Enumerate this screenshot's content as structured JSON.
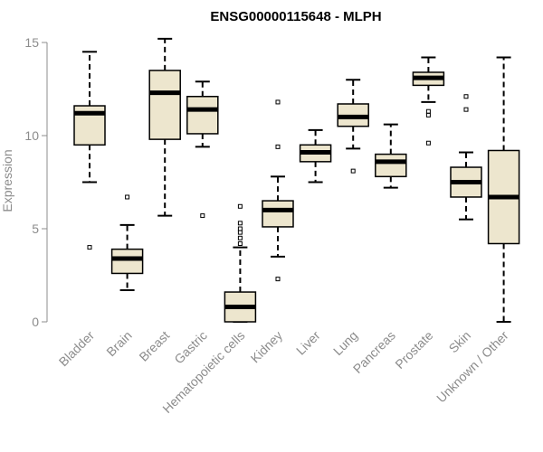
{
  "chart_data": {
    "type": "boxplot",
    "title": "ENSG00000115648 - MLPH",
    "ylabel": "Expression",
    "xlabel": "",
    "ylim": [
      0,
      15
    ],
    "yticks": [
      0,
      5,
      10,
      15
    ],
    "grid": false,
    "colors": {
      "box_fill": "#ede6ce",
      "box_stroke": "#000000",
      "axis": "#8c8c8c",
      "title": "#000000"
    },
    "categories": [
      "Bladder",
      "Brain",
      "Breast",
      "Gastric",
      "Hematopoietic cells",
      "Kidney",
      "Liver",
      "Lung",
      "Pancreas",
      "Prostate",
      "Skin",
      "Unknown / Other"
    ],
    "boxes": [
      {
        "label": "Bladder",
        "whisker_low": 7.5,
        "q1": 9.5,
        "median": 11.2,
        "q3": 11.6,
        "whisker_high": 14.5,
        "outliers": [
          4.0
        ]
      },
      {
        "label": "Brain",
        "whisker_low": 1.7,
        "q1": 2.6,
        "median": 3.4,
        "q3": 3.9,
        "whisker_high": 5.2,
        "outliers": [
          6.7
        ]
      },
      {
        "label": "Breast",
        "whisker_low": 5.7,
        "q1": 9.8,
        "median": 12.3,
        "q3": 13.5,
        "whisker_high": 15.2,
        "outliers": []
      },
      {
        "label": "Gastric",
        "whisker_low": 9.4,
        "q1": 10.1,
        "median": 11.4,
        "q3": 12.1,
        "whisker_high": 12.9,
        "outliers": [
          5.7
        ]
      },
      {
        "label": "Hematopoietic cells",
        "whisker_low": 0.0,
        "q1": 0.0,
        "median": 0.8,
        "q3": 1.6,
        "whisker_high": 4.0,
        "outliers": [
          4.2,
          4.5,
          4.8,
          5.0,
          5.3,
          6.2
        ]
      },
      {
        "label": "Kidney",
        "whisker_low": 3.5,
        "q1": 5.1,
        "median": 6.0,
        "q3": 6.5,
        "whisker_high": 7.8,
        "outliers": [
          2.3,
          9.4,
          11.8
        ]
      },
      {
        "label": "Liver",
        "whisker_low": 7.5,
        "q1": 8.6,
        "median": 9.1,
        "q3": 9.5,
        "whisker_high": 10.3,
        "outliers": []
      },
      {
        "label": "Lung",
        "whisker_low": 9.3,
        "q1": 10.5,
        "median": 11.0,
        "q3": 11.7,
        "whisker_high": 13.0,
        "outliers": [
          8.1
        ]
      },
      {
        "label": "Pancreas",
        "whisker_low": 7.2,
        "q1": 7.8,
        "median": 8.6,
        "q3": 9.0,
        "whisker_high": 10.6,
        "outliers": []
      },
      {
        "label": "Prostate",
        "whisker_low": 11.8,
        "q1": 12.7,
        "median": 13.1,
        "q3": 13.4,
        "whisker_high": 14.2,
        "outliers": [
          9.6,
          11.1,
          11.3
        ]
      },
      {
        "label": "Skin",
        "whisker_low": 5.5,
        "q1": 6.7,
        "median": 7.5,
        "q3": 8.3,
        "whisker_high": 9.1,
        "outliers": [
          11.4,
          12.1
        ]
      },
      {
        "label": "Unknown / Other",
        "whisker_low": 0.0,
        "q1": 4.2,
        "median": 6.7,
        "q3": 9.2,
        "whisker_high": 14.2,
        "outliers": []
      }
    ]
  }
}
